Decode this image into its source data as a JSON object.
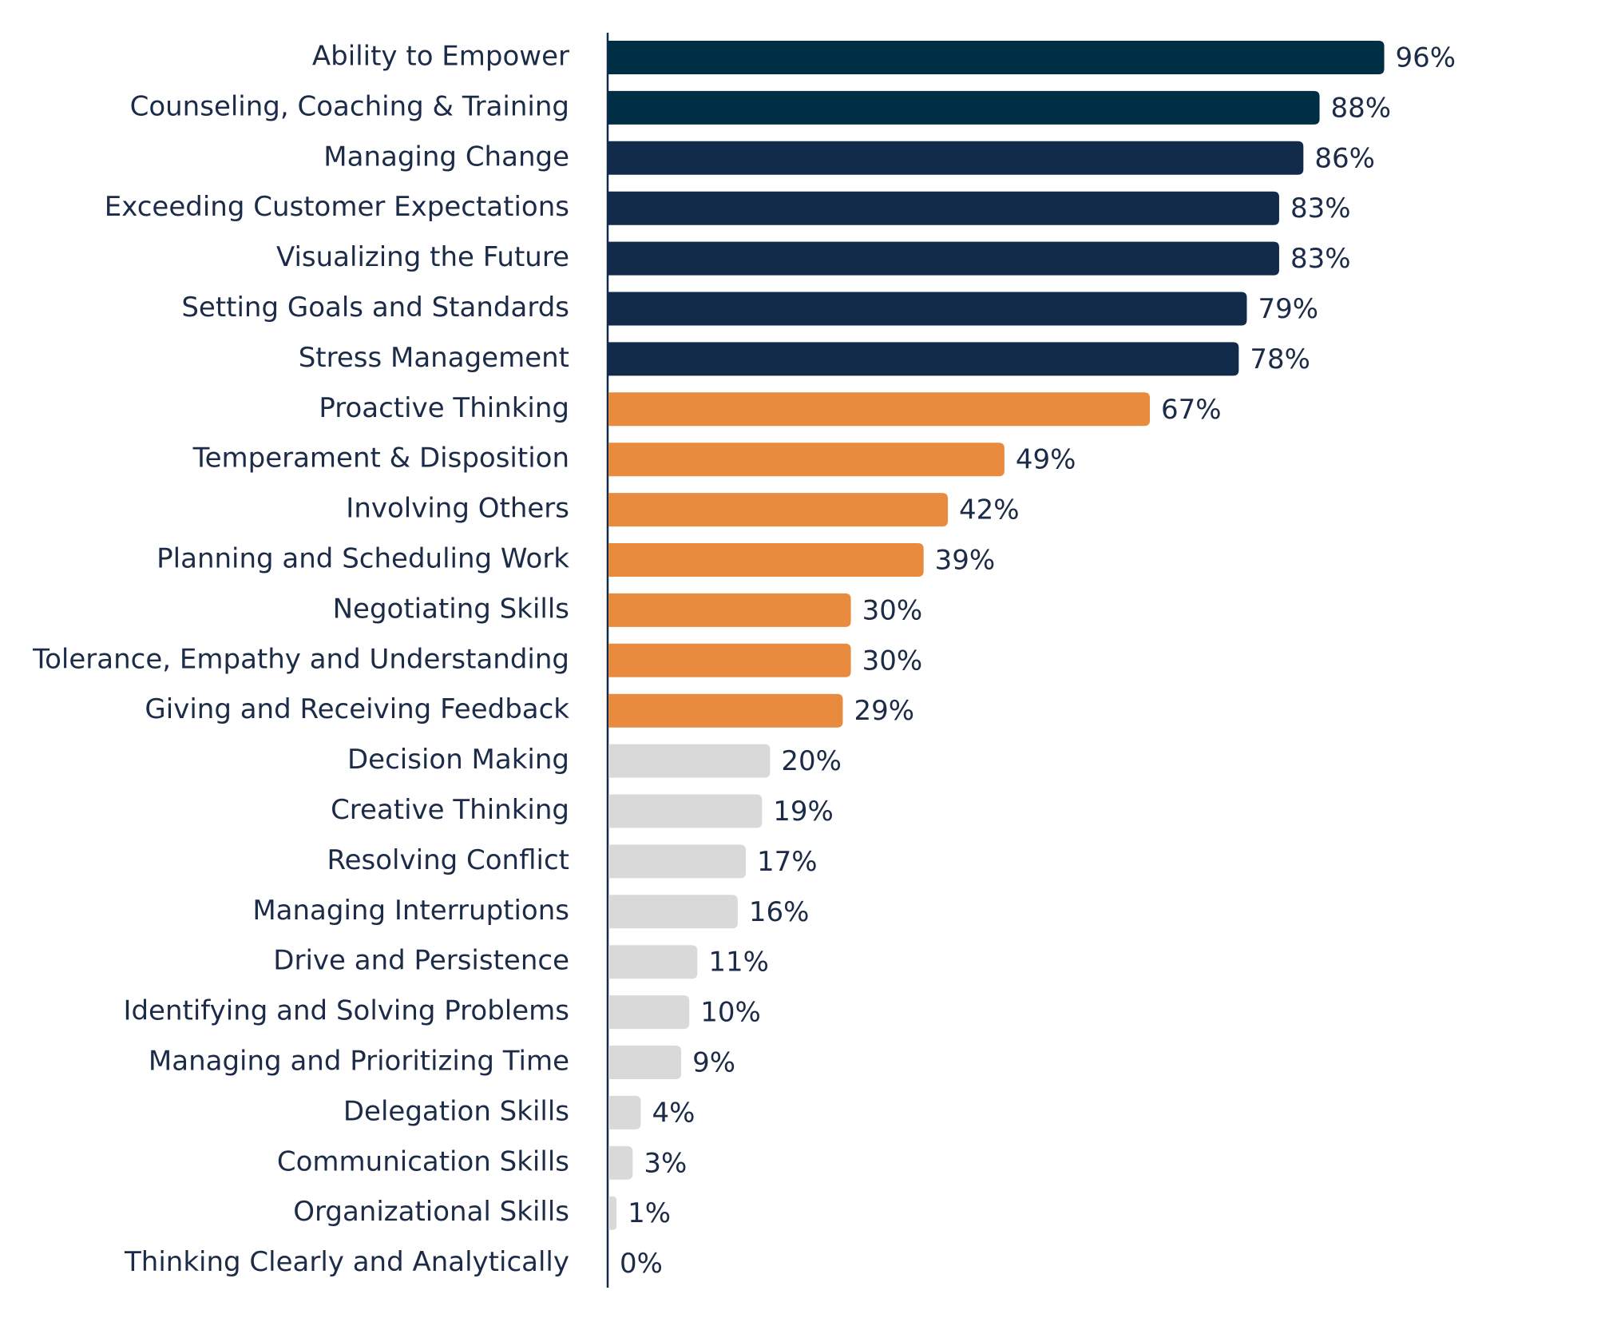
{
  "chart_data": {
    "type": "bar",
    "orientation": "horizontal",
    "categories": [
      "Ability to Empower",
      "Counseling, Coaching & Training",
      "Managing Change",
      "Exceeding Customer Expectations",
      "Visualizing the Future",
      "Setting Goals and Standards",
      "Stress Management",
      "Proactive Thinking",
      "Temperament & Disposition",
      "Involving Others",
      "Planning and Scheduling Work",
      "Negotiating Skills",
      "Tolerance, Empathy and Understanding",
      "Giving and Receiving Feedback",
      "Decision Making",
      "Creative Thinking",
      "Resolving Conflict",
      "Managing Interruptions",
      "Drive and Persistence",
      "Identifying and Solving Problems",
      "Managing and Prioritizing Time",
      "Delegation Skills",
      "Communication Skills",
      "Organizational Skills",
      "Thinking Clearly and Analytically"
    ],
    "values": [
      96,
      88,
      86,
      83,
      83,
      79,
      78,
      67,
      49,
      42,
      39,
      30,
      30,
      29,
      20,
      19,
      17,
      16,
      11,
      10,
      9,
      4,
      3,
      1,
      0
    ],
    "value_labels": [
      "96%",
      "88%",
      "86%",
      "83%",
      "83%",
      "79%",
      "78%",
      "67%",
      "49%",
      "42%",
      "39%",
      "30%",
      "30%",
      "29%",
      "20%",
      "19%",
      "17%",
      "16%",
      "11%",
      "10%",
      "9%",
      "4%",
      "3%",
      "1%",
      "0%"
    ],
    "colors": [
      "#002e45",
      "#002e45",
      "#132b4a",
      "#132b4a",
      "#132b4a",
      "#132b4a",
      "#132b4a",
      "#e88b3e",
      "#e88b3e",
      "#e88b3e",
      "#e88b3e",
      "#e88b3e",
      "#e88b3e",
      "#e88b3e",
      "#d9d9d9",
      "#d9d9d9",
      "#d9d9d9",
      "#d9d9d9",
      "#d9d9d9",
      "#d9d9d9",
      "#d9d9d9",
      "#d9d9d9",
      "#d9d9d9",
      "#d9d9d9",
      "#d9d9d9"
    ]
  }
}
